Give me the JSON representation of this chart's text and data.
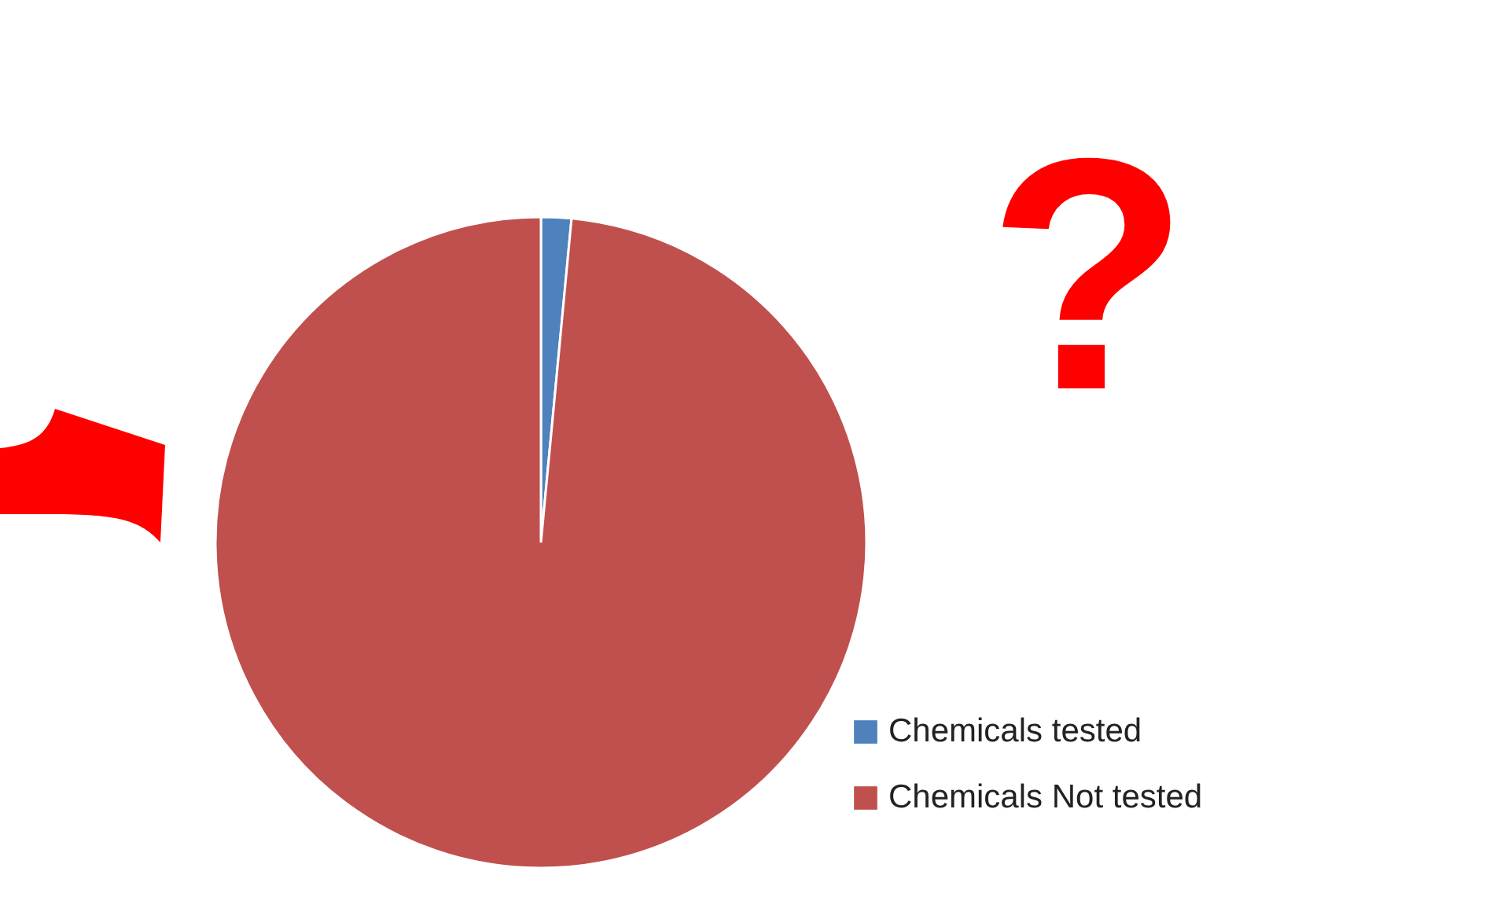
{
  "chart_data": {
    "type": "pie",
    "categories": [
      "Chemicals tested",
      "Chemicals Not tested"
    ],
    "values": [
      1.5,
      98.5
    ],
    "colors": [
      "#4f81bd",
      "#c0504d"
    ],
    "legend": "bottom right",
    "annotations": [
      "?"
    ]
  }
}
